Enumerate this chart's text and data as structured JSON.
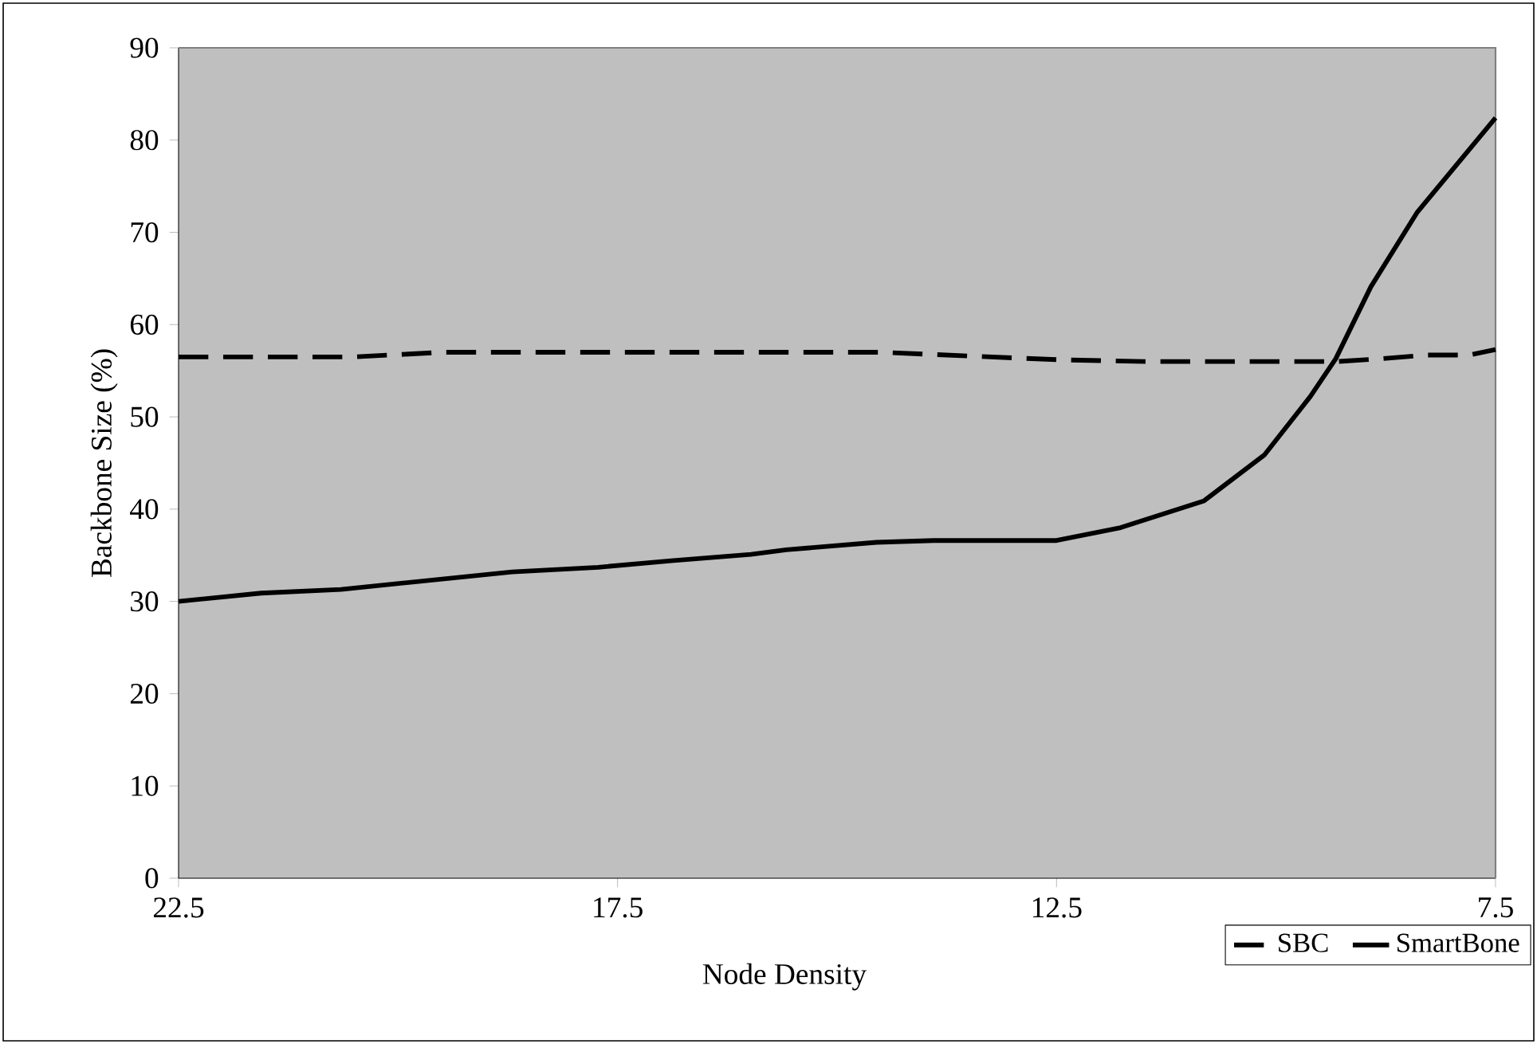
{
  "chart_data": {
    "type": "line",
    "xlabel": "Node Density",
    "ylabel": "Backbone Size (%)",
    "xlim": [
      22.5,
      7.5
    ],
    "xticks": [
      22.5,
      17.5,
      12.5,
      7.5
    ],
    "ylim": [
      0,
      90
    ],
    "yticks": [
      0,
      10,
      20,
      30,
      40,
      50,
      60,
      70,
      80,
      90
    ],
    "legend": "bottom right",
    "series": [
      {
        "name": "SBC",
        "color": "#000000",
        "line_style": "dashed",
        "x": [
          22.5,
          20.5,
          19.5,
          14.5,
          13.5,
          12.5,
          11.5,
          9.3,
          8.8,
          8.3,
          7.8,
          7.5
        ],
        "values": [
          56.5,
          56.5,
          57,
          57,
          56.6,
          56.2,
          56,
          56,
          56.3,
          56.7,
          56.7,
          57.3
        ]
      },
      {
        "name": "SmartBone",
        "color": "#000000",
        "line_style": "solid",
        "x": [
          22.5,
          21.56,
          20.65,
          18.7,
          17.72,
          16.89,
          15.98,
          15.58,
          14.55,
          13.9,
          12.5,
          11.77,
          10.82,
          10.13,
          9.61,
          9.32,
          8.92,
          8.39,
          7.5
        ],
        "values": [
          30.0,
          30.9,
          31.3,
          33.2,
          33.7,
          34.4,
          35.1,
          35.6,
          36.4,
          36.6,
          36.6,
          38.0,
          40.9,
          45.9,
          52.2,
          56.3,
          64.1,
          72.2,
          82.4
        ]
      }
    ]
  }
}
